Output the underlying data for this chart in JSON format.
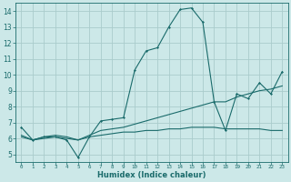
{
  "xlabel": "Humidex (Indice chaleur)",
  "bg_color": "#cce8e8",
  "grid_color": "#aacccc",
  "line_color": "#1a6b6b",
  "xlim": [
    -0.5,
    23.5
  ],
  "ylim": [
    4.5,
    14.5
  ],
  "xticks": [
    0,
    1,
    2,
    3,
    4,
    5,
    6,
    7,
    8,
    9,
    10,
    11,
    12,
    13,
    14,
    15,
    16,
    17,
    18,
    19,
    20,
    21,
    22,
    23
  ],
  "yticks": [
    5,
    6,
    7,
    8,
    9,
    10,
    11,
    12,
    13,
    14
  ],
  "curve1_x": [
    0,
    1,
    2,
    3,
    4,
    5,
    6,
    7,
    8,
    9,
    10,
    11,
    12,
    13,
    14,
    15,
    16,
    17,
    18,
    19,
    20,
    21,
    22,
    23
  ],
  "curve1_y": [
    6.7,
    5.9,
    6.1,
    6.1,
    5.9,
    4.8,
    6.1,
    7.1,
    7.2,
    7.3,
    10.3,
    11.5,
    11.7,
    13.0,
    14.1,
    14.2,
    13.3,
    8.3,
    6.5,
    8.8,
    8.5,
    9.5,
    8.8,
    10.2
  ],
  "curve2_x": [
    0,
    1,
    2,
    3,
    4,
    5,
    6,
    7,
    8,
    9,
    10,
    11,
    12,
    13,
    14,
    15,
    16,
    17,
    18,
    19,
    20,
    21,
    22,
    23
  ],
  "curve2_y": [
    6.2,
    5.9,
    6.1,
    6.2,
    6.1,
    5.9,
    6.2,
    6.5,
    6.6,
    6.7,
    6.9,
    7.1,
    7.3,
    7.5,
    7.7,
    7.9,
    8.1,
    8.3,
    8.3,
    8.6,
    8.8,
    9.0,
    9.1,
    9.3
  ],
  "curve3_x": [
    0,
    1,
    2,
    3,
    4,
    5,
    6,
    7,
    8,
    9,
    10,
    11,
    12,
    13,
    14,
    15,
    16,
    17,
    18,
    19,
    20,
    21,
    22,
    23
  ],
  "curve3_y": [
    6.1,
    5.9,
    6.0,
    6.1,
    6.0,
    5.9,
    6.1,
    6.2,
    6.3,
    6.4,
    6.4,
    6.5,
    6.5,
    6.6,
    6.6,
    6.7,
    6.7,
    6.7,
    6.6,
    6.6,
    6.6,
    6.6,
    6.5,
    6.5
  ]
}
